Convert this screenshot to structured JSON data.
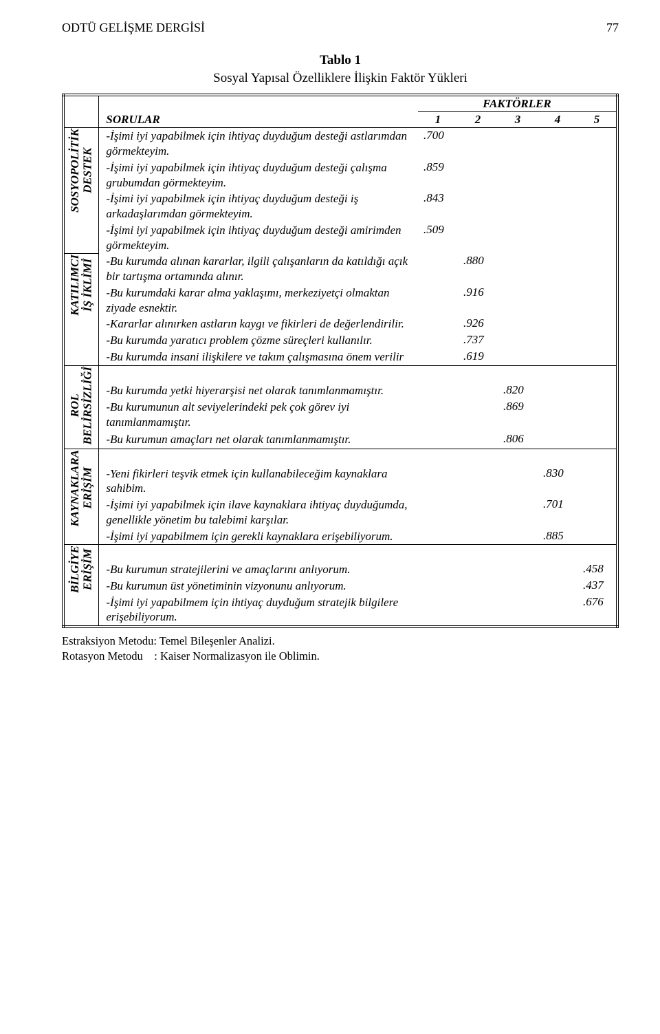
{
  "running_head_left": "ODTÜ GELİŞME DERGİSİ",
  "running_head_right": "77",
  "caption_num": "Tablo 1",
  "caption_text": "Sosyal Yapısal Özelliklere İlişkin Faktör Yükleri",
  "header_factors": "FAKTÖRLER",
  "header_sorular": "SORULAR",
  "header_cols": [
    "1",
    "2",
    "3",
    "4",
    "5"
  ],
  "groups": [
    {
      "label": "SOSYOPOLİTİK\nDESTEK",
      "items": [
        {
          "text": "-İşimi iyi yapabilmek için ihtiyaç duyduğum desteği     astlarımdan görmekteyim.",
          "col": 0,
          "val": ".700",
          "first_line_val": true
        },
        {
          "text": "-İşimi iyi yapabilmek için ihtiyaç duyduğum desteği çalışma grubumdan görmekteyim.",
          "col": 0,
          "val": ".859"
        },
        {
          "text": "-İşimi iyi yapabilmek için ihtiyaç duyduğum desteği iş arkadaşlarımdan görmekteyim.",
          "col": 0,
          "val": ".843"
        },
        {
          "text": "-İşimi iyi yapabilmek için ihtiyaç duyduğum desteği amirimden görmekteyim.",
          "col": 0,
          "val": ".509"
        }
      ]
    },
    {
      "label": "KATILIMCI\nİŞ İKLİMİ",
      "items": [
        {
          "text": "-Bu kurumda alınan kararlar, ilgili çalışanların da katıldığı açık bir tartışma ortamında alınır.",
          "col": 1,
          "val": ".880"
        },
        {
          "text": "-Bu kurumdaki karar alma yaklaşımı, merkeziyetçi olmaktan ziyade esnektir.",
          "col": 1,
          "val": ".916"
        },
        {
          "text": "-Kararlar alınırken astların kaygı ve fikirleri de değerlendirilir.",
          "col": 1,
          "val": ".926"
        },
        {
          "text": "-Bu kurumda yaratıcı problem çözme süreçleri kullanılır.",
          "col": 1,
          "val": ".737"
        },
        {
          "text": "-Bu kurumda insani ilişkilere ve takım çalışmasına önem verilir",
          "col": 1,
          "val": ".619"
        }
      ]
    },
    {
      "label": "ROL\nBELİRSİZLİĞİ",
      "pad_top": true,
      "items": [
        {
          "text": "-Bu kurumda yetki hiyerarşisi net olarak tanımlanmamıştır.",
          "col": 2,
          "val": ".820"
        },
        {
          "text": "-Bu kurumunun alt seviyelerindeki pek çok görev iyi tanımlanmamıştır.",
          "col": 2,
          "val": ".869"
        },
        {
          "text": "-Bu kurumun amaçları net olarak tanımlanmamıştır.",
          "col": 2,
          "val": ".806"
        }
      ]
    },
    {
      "label": "KAYNAKLARA\nERİŞİM",
      "pad_top": true,
      "items": [
        {
          "text": "-Yeni fikirleri teşvik etmek için kullanabileceğim  kaynaklara sahibim.",
          "col": 3,
          "val": ".830"
        },
        {
          "text": "-İşimi iyi yapabilmek için ilave kaynaklara ihtiyaç duyduğumda, genellikle yönetim bu talebimi karşılar.",
          "col": 3,
          "val": ".701"
        },
        {
          "text": "-İşimi iyi yapabilmem için gerekli kaynaklara erişebiliyorum.",
          "col": 3,
          "val": ".885"
        }
      ]
    },
    {
      "label": "BİLGİYE\nERİŞİM",
      "pad_top": true,
      "items": [
        {
          "text": "-Bu kurumun stratejilerini ve amaçlarını anlıyorum.",
          "col": 4,
          "val": ".458"
        },
        {
          "text": "-Bu kurumun üst yönetiminin vizyonunu anlıyorum.",
          "col": 4,
          "val": ".437"
        },
        {
          "text": "-İşimi iyi yapabilmem için ihtiyaç duyduğum stratejik bilgilere     erişebiliyorum.",
          "col": 4,
          "val": ".676"
        }
      ]
    }
  ],
  "footnote_line1": "Estraksiyon Metodu: Temel Bileşenler Analizi.",
  "footnote_line2": "Rotasyon Metodu    : Kaiser Normalizasyon ile Oblimin."
}
